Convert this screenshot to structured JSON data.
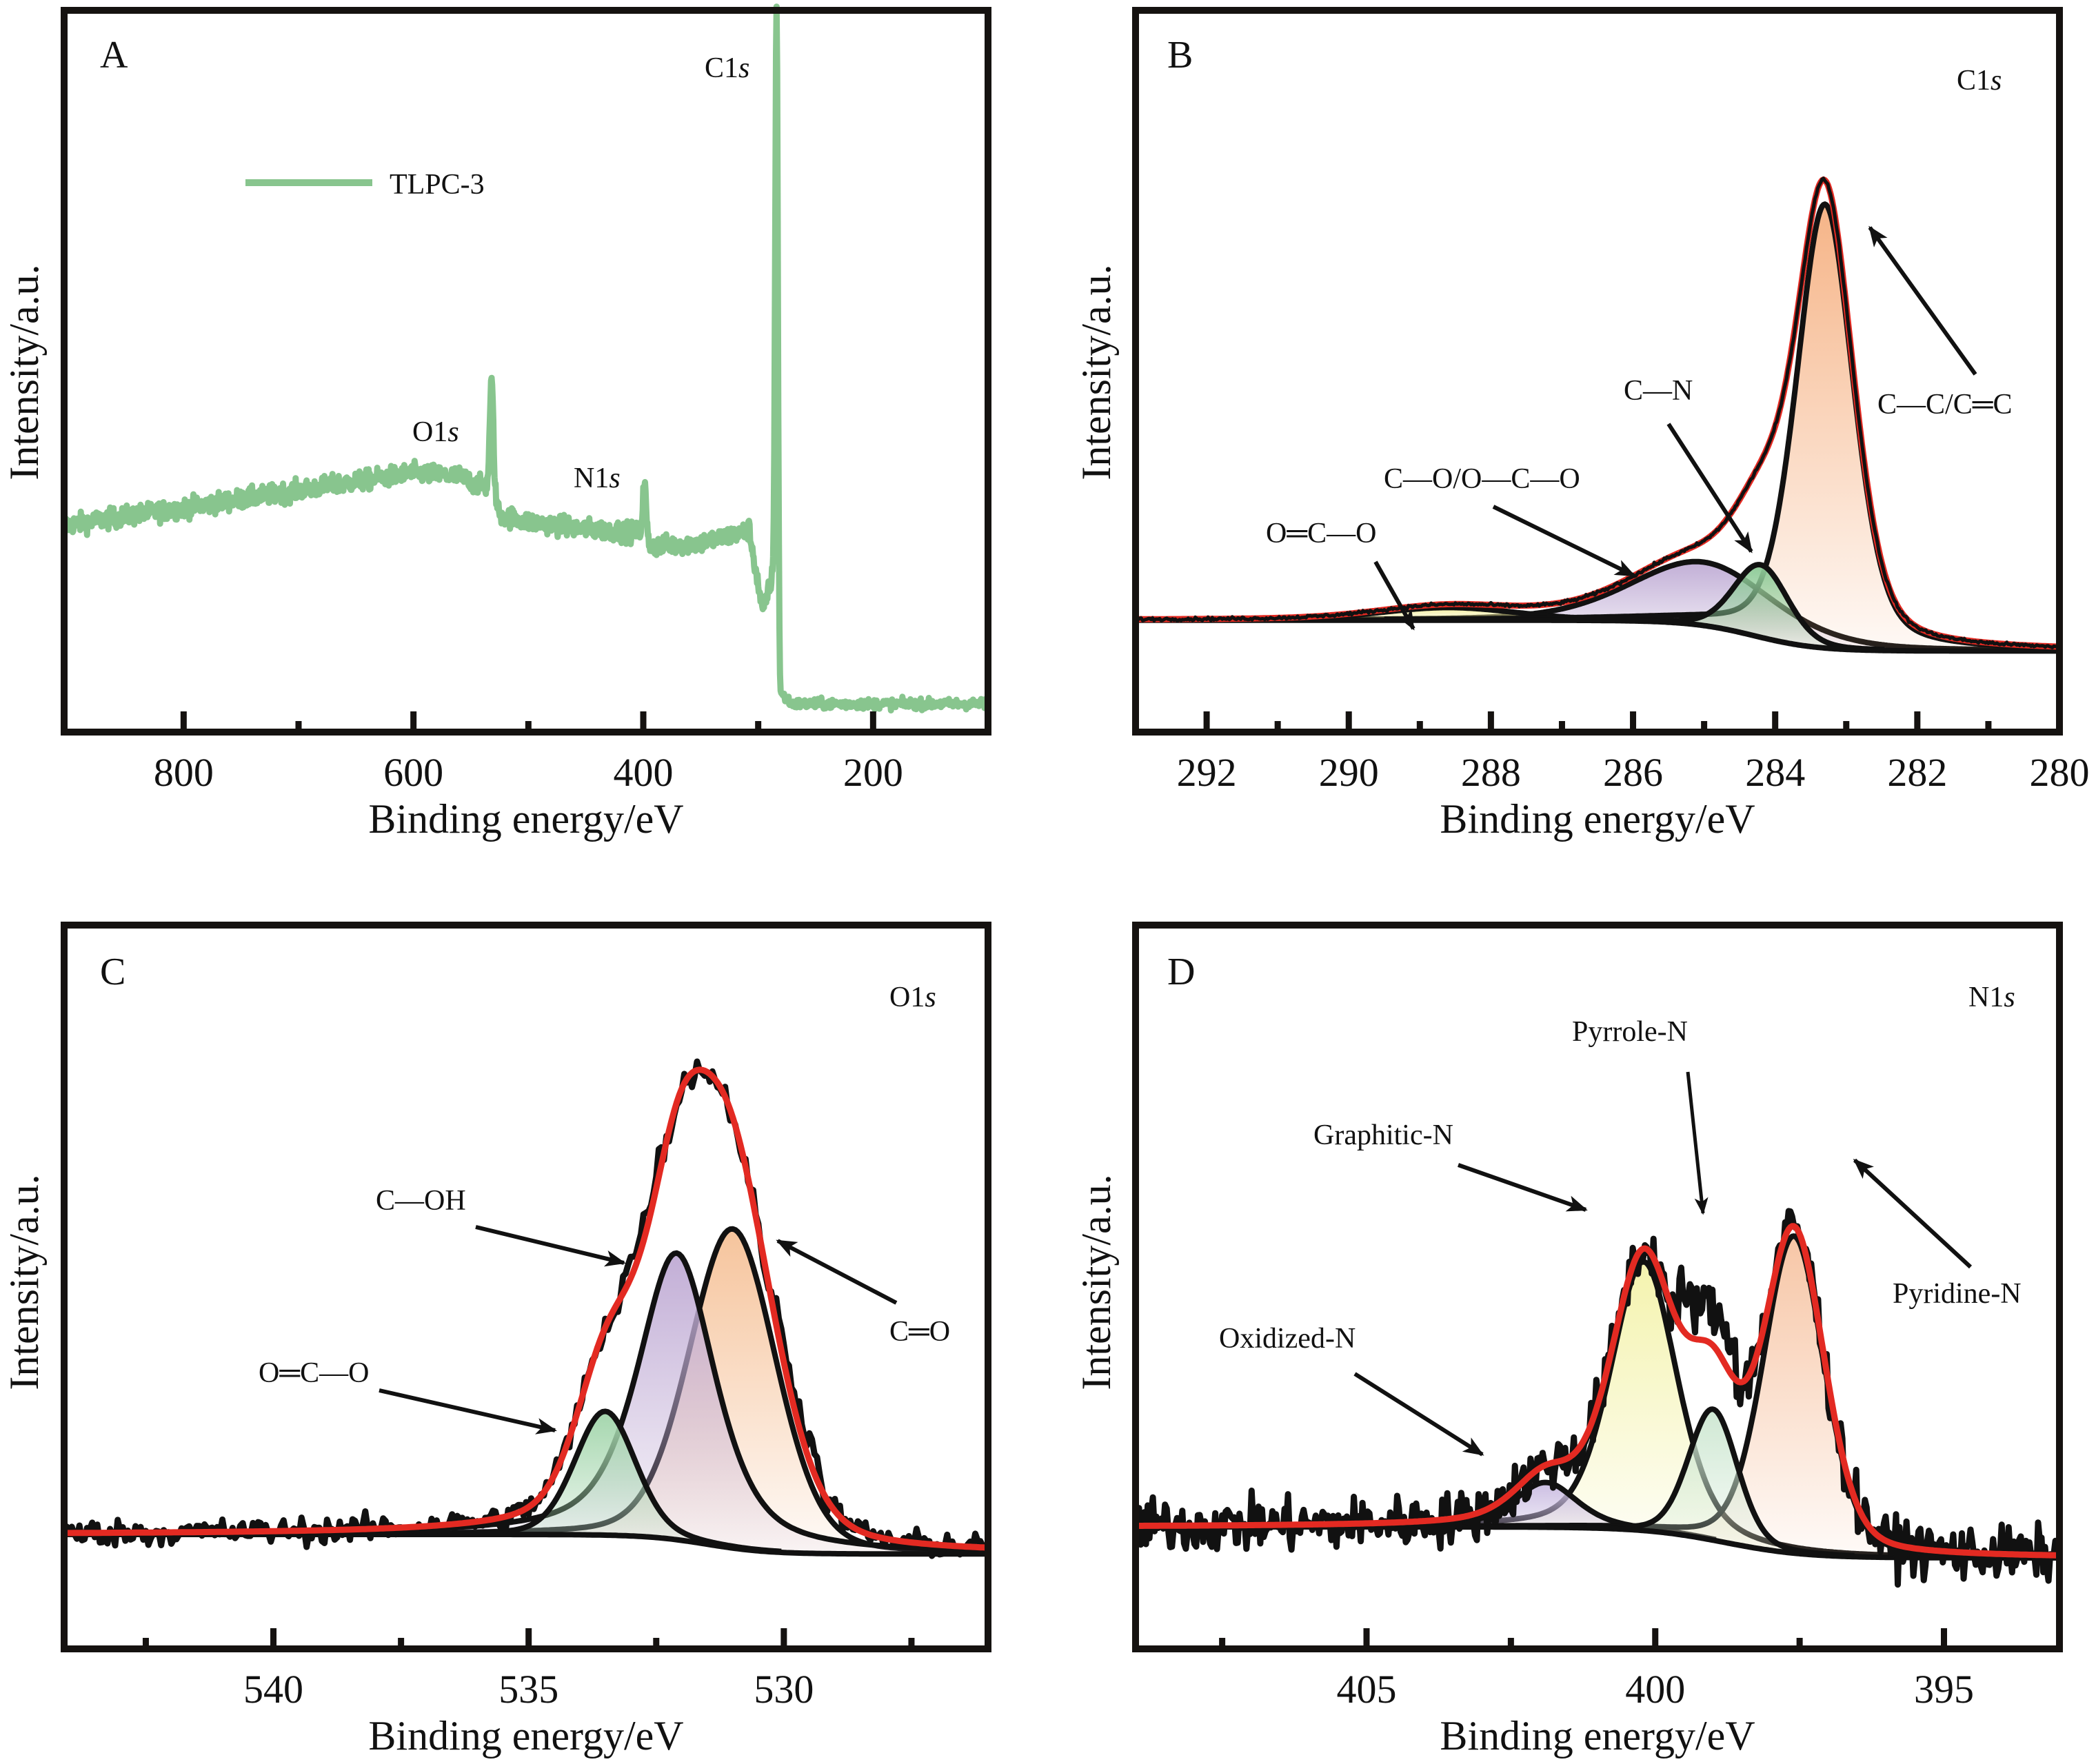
{
  "figure": {
    "panels": [
      "A",
      "B",
      "C",
      "D"
    ]
  },
  "chart_data": [
    {
      "panel": "A",
      "type": "line",
      "title": "",
      "panel_label": "A",
      "xlabel": "Binding energy/eV",
      "ylabel": "Intensity/a.u.",
      "xlim": [
        904,
        100
      ],
      "x_reversed": true,
      "xticks_major": [
        800,
        600,
        400,
        200
      ],
      "xticks_minor": [
        700,
        500,
        300
      ],
      "ylim": [
        0,
        100
      ],
      "y_ticks": "none",
      "legend": {
        "position": "upper-left",
        "entries": [
          {
            "label": "TLPC-3",
            "color": "#88c58e"
          }
        ]
      },
      "series": [
        {
          "name": "TLPC-3",
          "color": "#88c58e",
          "baseline_points": [
            [
              904,
              24.5
            ],
            [
              800,
              27
            ],
            [
              700,
              29.5
            ],
            [
              600,
              32
            ],
            [
              560,
              31.5
            ],
            [
              540,
              30
            ],
            [
              532,
              30
            ],
            [
              525,
              26
            ],
            [
              500,
              25
            ],
            [
              450,
              24
            ],
            [
              405,
              23.5
            ],
            [
              395,
              21.5
            ],
            [
              350,
              22
            ],
            [
              312,
              23.5
            ],
            [
              308,
              24
            ],
            [
              300,
              16
            ],
            [
              296,
              12
            ],
            [
              290,
              16
            ],
            [
              286,
              18
            ],
            [
              281,
              0.5
            ],
            [
              270,
              -1
            ],
            [
              200,
              -1
            ],
            [
              100,
              -1
            ]
          ],
          "peaks": [
            {
              "label": "O1s",
              "position_eV": 532,
              "height": 15
            },
            {
              "label": "N1s",
              "position_eV": 399,
              "height": 8
            },
            {
              "label": "C1s",
              "position_eV": 284,
              "height": 88
            }
          ]
        }
      ],
      "annotations": [
        {
          "text": "C1s",
          "at_eV": 284
        },
        {
          "text": "O1s",
          "at_eV": 532
        },
        {
          "text": "N1s",
          "at_eV": 399
        }
      ]
    },
    {
      "panel": "B",
      "type": "area",
      "title": "C1s",
      "panel_label": "B",
      "xlabel": "Binding energy/eV",
      "ylabel": "Intensity/a.u.",
      "xlim": [
        293,
        280
      ],
      "x_reversed": true,
      "xticks_major": [
        292,
        290,
        288,
        286,
        284,
        282,
        280
      ],
      "xticks_minor": [
        291,
        289,
        287,
        285,
        283,
        281
      ],
      "ylim": [
        0,
        100
      ],
      "background": {
        "left_level": 10.3,
        "right_level": 5.2,
        "step_center_eV": 284.3,
        "step_width_eV": 0.9
      },
      "components": [
        {
          "name": "C—C/C═C",
          "center_eV": 283.3,
          "height": 73.5,
          "fwhm_eV": 0.95,
          "mix": 0.35,
          "color": "#f6b487"
        },
        {
          "name": "C—N",
          "center_eV": 284.2,
          "height": 12,
          "fwhm_eV": 0.9,
          "mix": 0.2,
          "color": "#8fcb98"
        },
        {
          "name": "C—O/O—C—O",
          "center_eV": 285.0,
          "height": 10.5,
          "fwhm_eV": 2.4,
          "mix": 0.3,
          "color": "#c1aed6"
        },
        {
          "name": "O═C—O",
          "center_eV": 288.6,
          "height": 2.1,
          "fwhm_eV": 2.3,
          "mix": 0.2,
          "color": "#f4ef9c"
        }
      ],
      "series": [
        {
          "name": "Raw data",
          "color": "#111111"
        },
        {
          "name": "Fit envelope",
          "color": "#e32a22"
        }
      ],
      "annotations": [
        {
          "text": "C—C/C═C",
          "points_to_eV": 283.1
        },
        {
          "text": "C—N",
          "points_to_eV": 284.4
        },
        {
          "text": "C—O/O—C—O",
          "points_to_eV": 286.0
        },
        {
          "text": "O═C—O",
          "points_to_eV": 289.0
        }
      ]
    },
    {
      "panel": "C",
      "type": "area",
      "title": "O1s",
      "panel_label": "C",
      "xlabel": "Binding energy/eV",
      "ylabel": "Intensity/a.u.",
      "xlim": [
        544.1,
        526.0
      ],
      "x_reversed": true,
      "xticks_major": [
        540,
        535,
        530
      ],
      "xticks_minor": [
        542.5,
        537.5,
        532.5,
        527.5
      ],
      "ylim": [
        0,
        100
      ],
      "background": {
        "left_level": 20,
        "right_level": 17,
        "step_center_eV": 531.5,
        "step_width_eV": 1.2
      },
      "components": [
        {
          "name": "C═O",
          "center_eV": 531.0,
          "height": 49,
          "fwhm_eV": 2.0,
          "mix": 0.2,
          "color": "#f6c49c"
        },
        {
          "name": "C—OH",
          "center_eV": 532.1,
          "height": 44,
          "fwhm_eV": 1.8,
          "mix": 0.6,
          "color": "#c2aed6"
        },
        {
          "name": "O═C—O",
          "center_eV": 533.5,
          "height": 19,
          "fwhm_eV": 1.4,
          "mix": 0.2,
          "color": "#a4d6ad"
        }
      ],
      "series": [
        {
          "name": "Raw data",
          "color": "#111111"
        },
        {
          "name": "Fit envelope",
          "color": "#e32a22"
        }
      ],
      "annotations": [
        {
          "text": "C—OH",
          "points_to_eV": 532.8
        },
        {
          "text": "C═O",
          "points_to_eV": 530.3
        },
        {
          "text": "O═C—O",
          "points_to_eV": 534.3
        }
      ]
    },
    {
      "panel": "D",
      "type": "area",
      "title": "N1s",
      "panel_label": "D",
      "xlabel": "Binding energy/eV",
      "ylabel": "Intensity/a.u.",
      "xlim": [
        409.0,
        393.0
      ],
      "x_reversed": true,
      "xticks_major": [
        405,
        400,
        395
      ],
      "xticks_minor": [
        407.5,
        402.5,
        397.5
      ],
      "ylim": [
        0,
        100
      ],
      "background": {
        "left_level": 24,
        "right_level": 19.5,
        "step_center_eV": 398.8,
        "step_width_eV": 1.4
      },
      "components": [
        {
          "name": "Pyridine-N",
          "center_eV": 397.6,
          "height": 46,
          "fwhm_eV": 1.25,
          "mix": 0.25,
          "color": "#f7c6a6"
        },
        {
          "name": "Pyrrole-N",
          "center_eV": 399.0,
          "height": 19,
          "fwhm_eV": 1.0,
          "mix": 0.2,
          "color": "#cfe8d3"
        },
        {
          "name": "Graphitic-N",
          "center_eV": 400.2,
          "height": 39,
          "fwhm_eV": 1.35,
          "mix": 0.35,
          "color": "#f4f3ae"
        },
        {
          "name": "Oxidized-N",
          "center_eV": 401.9,
          "height": 6.5,
          "fwhm_eV": 1.3,
          "mix": 0.5,
          "color": "#cbbde2"
        }
      ],
      "series": [
        {
          "name": "Raw data",
          "color": "#111111"
        },
        {
          "name": "Fit envelope",
          "color": "#e32a22"
        }
      ],
      "annotations": [
        {
          "text": "Pyrrole-N",
          "points_to_eV": 399.4
        },
        {
          "text": "Graphitic-N",
          "points_to_eV": 400.5
        },
        {
          "text": "Pyridine-N",
          "points_to_eV": 397.0
        },
        {
          "text": "Oxidized-N",
          "points_to_eV": 402.3
        }
      ]
    }
  ],
  "labels": {
    "A": {
      "letter": "A",
      "legend": "TLPC-3",
      "c1s": "C1",
      "o1s": "O1",
      "n1s": "N1",
      "s": "s",
      "xlabel": "Binding energy/eV",
      "ylabel": "Intensity/a.u.",
      "ticks": [
        "800",
        "600",
        "400",
        "200"
      ]
    },
    "B": {
      "letter": "B",
      "region": "C1",
      "s": "s",
      "xlabel": "Binding energy/eV",
      "ylabel": "Intensity/a.u.",
      "ticks": [
        "292",
        "290",
        "288",
        "286",
        "284",
        "282",
        "280"
      ],
      "ann_cc": "C—C/C═C",
      "ann_cn": "C—N",
      "ann_co": "C—O/O—C—O",
      "ann_oco": "O═C—O"
    },
    "C": {
      "letter": "C",
      "region": "O1",
      "s": "s",
      "xlabel": "Binding energy/eV",
      "ylabel": "Intensity/a.u.",
      "ticks": [
        "540",
        "535",
        "530"
      ],
      "ann_coh": "C—OH",
      "ann_co": "C═O",
      "ann_oco": "O═C—O"
    },
    "D": {
      "letter": "D",
      "region": "N1",
      "s": "s",
      "xlabel": "Binding energy/eV",
      "ylabel": "Intensity/a.u.",
      "ticks": [
        "405",
        "400",
        "395"
      ],
      "ann_pyrrole": "Pyrrole-N",
      "ann_graphitic": "Graphitic-N",
      "ann_pyridine": "Pyridine-N",
      "ann_oxidized": "Oxidized-N"
    }
  }
}
